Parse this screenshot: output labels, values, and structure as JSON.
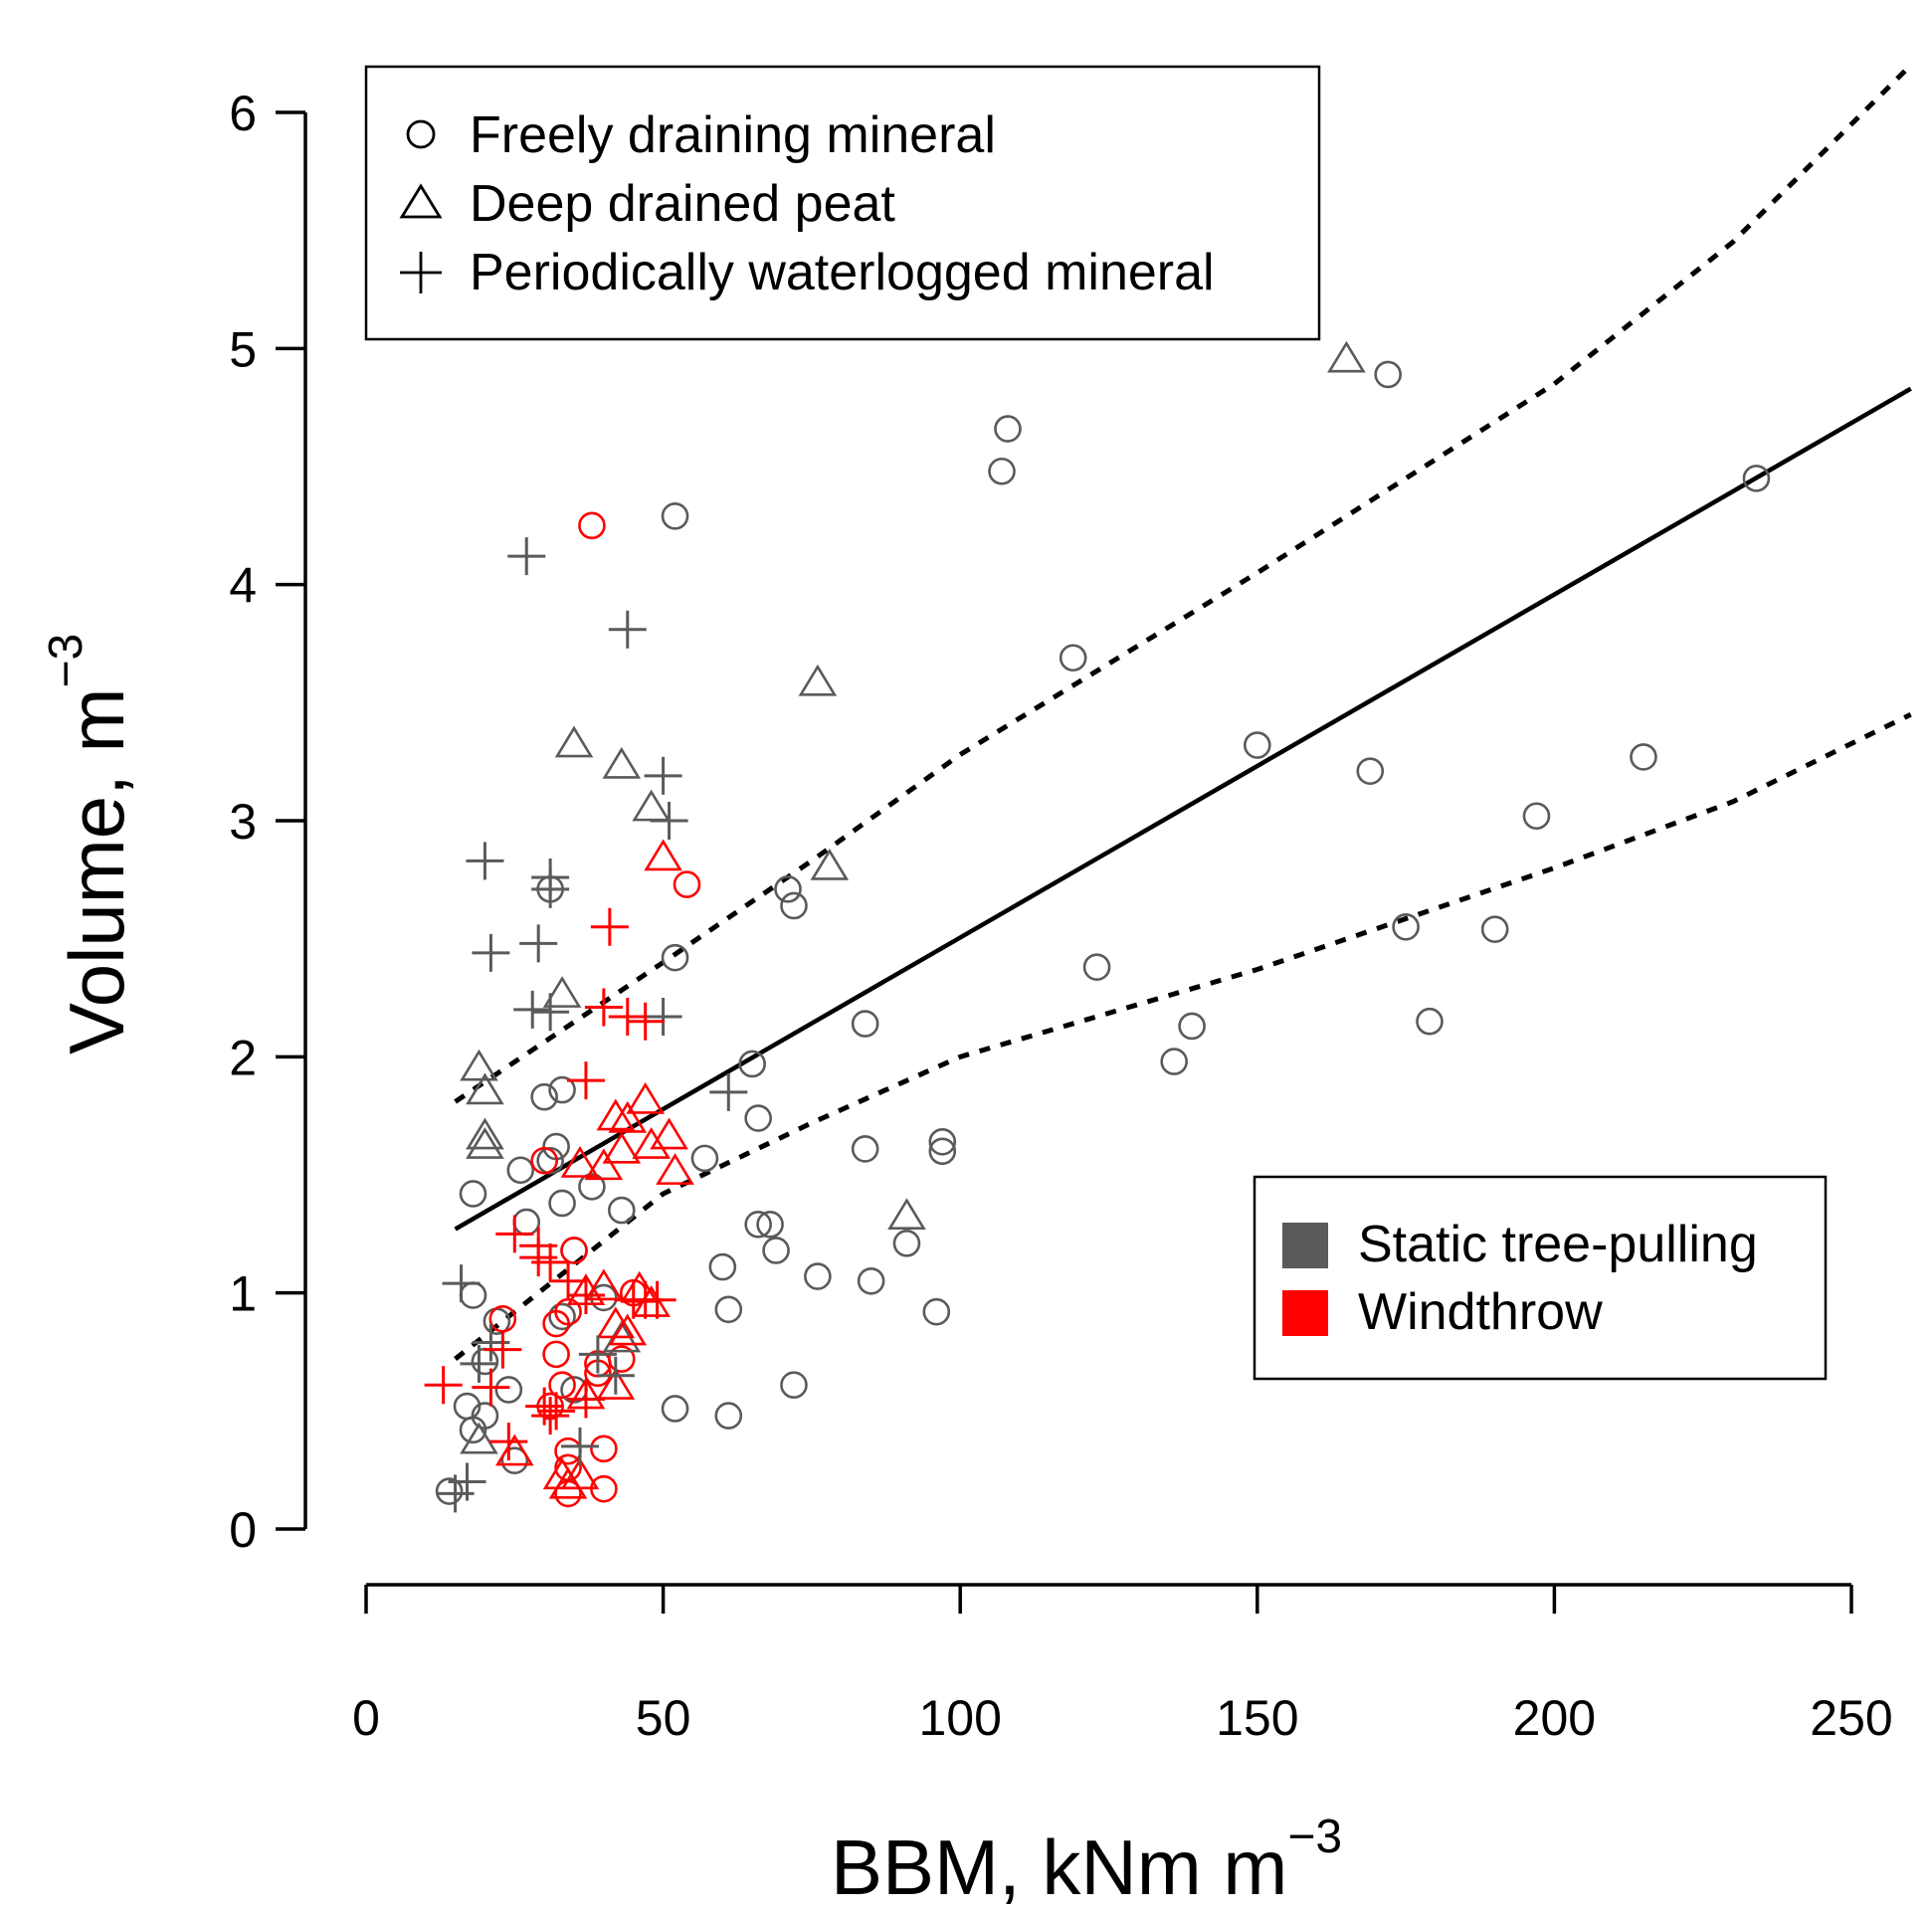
{
  "chart_data": {
    "type": "scatter",
    "xlabel": "BBM, kNm m",
    "xlabel_sup": "−3",
    "ylabel": "Volume, m",
    "ylabel_sup": "−3",
    "xlim": [
      0,
      250
    ],
    "ylim": [
      0,
      6
    ],
    "x_ticks": [
      0,
      50,
      100,
      150,
      200,
      250
    ],
    "x_tick_labels": [
      "0",
      "50",
      "100",
      "150",
      "200",
      "250"
    ],
    "y_ticks": [
      0,
      1,
      2,
      3,
      4,
      5,
      6
    ],
    "y_tick_labels": [
      "0",
      "1",
      "2",
      "3",
      "4",
      "5",
      "6"
    ],
    "grid": false,
    "shape_legend": {
      "position": "top-left",
      "entries": [
        {
          "symbol": "circle",
          "label": "Freely draining mineral"
        },
        {
          "symbol": "triangle",
          "label": "Deep drained peat"
        },
        {
          "symbol": "plus",
          "label": "Periodically waterlogged mineral"
        }
      ]
    },
    "color_legend": {
      "position": "bottom-right",
      "entries": [
        {
          "label": "Static tree-pulling",
          "color": "#5a5a5a"
        },
        {
          "label": "Windthrow",
          "color": "#ff0000"
        }
      ]
    },
    "colors": {
      "static": "#5a5a5a",
      "windthrow": "#ff0000",
      "line": "#000000"
    },
    "fit_line": {
      "x1": 15,
      "y1": 1.27,
      "x2": 260,
      "y2": 4.83
    },
    "confidence_upper": [
      [
        15,
        1.81
      ],
      [
        50,
        2.4
      ],
      [
        75,
        2.83
      ],
      [
        100,
        3.28
      ],
      [
        150,
        4.05
      ],
      [
        200,
        4.85
      ],
      [
        230,
        5.45
      ],
      [
        260,
        6.2
      ]
    ],
    "confidence_lower": [
      [
        15,
        0.72
      ],
      [
        50,
        1.42
      ],
      [
        75,
        1.72
      ],
      [
        100,
        2.0
      ],
      [
        150,
        2.37
      ],
      [
        200,
        2.8
      ],
      [
        230,
        3.08
      ],
      [
        260,
        3.45
      ]
    ],
    "series": [
      {
        "name": "Freely draining mineral / Static tree-pulling",
        "shape": "circle",
        "color": "static",
        "points": [
          [
            52,
            4.29
          ],
          [
            108,
            4.66
          ],
          [
            107,
            4.48
          ],
          [
            172,
            4.89
          ],
          [
            234,
            4.45
          ],
          [
            119,
            3.69
          ],
          [
            150,
            3.32
          ],
          [
            169,
            3.21
          ],
          [
            215,
            3.27
          ],
          [
            197,
            3.02
          ],
          [
            175,
            2.55
          ],
          [
            190,
            2.54
          ],
          [
            179,
            2.15
          ],
          [
            123,
            2.38
          ],
          [
            139,
            2.13
          ],
          [
            136,
            1.98
          ],
          [
            71,
            2.71
          ],
          [
            72,
            2.64
          ],
          [
            52,
            2.42
          ],
          [
            65,
            1.97
          ],
          [
            66,
            1.74
          ],
          [
            84,
            2.14
          ],
          [
            84,
            1.61
          ],
          [
            97,
            1.64
          ],
          [
            97,
            1.6
          ],
          [
            57,
            1.57
          ],
          [
            31,
            2.71
          ],
          [
            30,
            1.83
          ],
          [
            33,
            1.86
          ],
          [
            32,
            1.62
          ],
          [
            26,
            1.52
          ],
          [
            31,
            1.56
          ],
          [
            18,
            1.42
          ],
          [
            33,
            1.38
          ],
          [
            43,
            1.35
          ],
          [
            27,
            1.3
          ],
          [
            38,
            1.45
          ],
          [
            66,
            1.29
          ],
          [
            68,
            1.29
          ],
          [
            69,
            1.18
          ],
          [
            76,
            1.07
          ],
          [
            85,
            1.05
          ],
          [
            91,
            1.21
          ],
          [
            60,
            1.11
          ],
          [
            61,
            0.93
          ],
          [
            96,
            0.92
          ],
          [
            72,
            0.61
          ],
          [
            52,
            0.51
          ],
          [
            61,
            0.48
          ],
          [
            18,
            0.99
          ],
          [
            22,
            0.88
          ],
          [
            20,
            0.71
          ],
          [
            24,
            0.59
          ],
          [
            20,
            0.48
          ],
          [
            17,
            0.52
          ],
          [
            18,
            0.42
          ],
          [
            25,
            0.29
          ],
          [
            14,
            0.16
          ],
          [
            33,
            0.9
          ],
          [
            35,
            1.18
          ],
          [
            35,
            0.59
          ],
          [
            40,
            0.98
          ]
        ]
      },
      {
        "name": "Freely draining mineral / Windthrow",
        "shape": "circle",
        "color": "windthrow",
        "points": [
          [
            38,
            4.25
          ],
          [
            54,
            2.73
          ],
          [
            30,
            1.56
          ],
          [
            23,
            0.89
          ],
          [
            32,
            0.87
          ],
          [
            32,
            0.74
          ],
          [
            35,
            1.18
          ],
          [
            33,
            0.61
          ],
          [
            34,
            0.33
          ],
          [
            34,
            0.26
          ],
          [
            34,
            0.15
          ],
          [
            39,
            0.7
          ],
          [
            39,
            0.66
          ],
          [
            40,
            0.34
          ],
          [
            40,
            0.17
          ],
          [
            45,
            1.0
          ],
          [
            43,
            0.72
          ],
          [
            31,
            0.52
          ],
          [
            34,
            0.92
          ]
        ]
      },
      {
        "name": "Deep drained peat / Static tree-pulling",
        "shape": "triangle",
        "color": "static",
        "points": [
          [
            165,
            4.95
          ],
          [
            76,
            3.58
          ],
          [
            35,
            3.32
          ],
          [
            43,
            3.23
          ],
          [
            48,
            3.05
          ],
          [
            78,
            2.8
          ],
          [
            33,
            2.26
          ],
          [
            19,
            1.95
          ],
          [
            20,
            1.85
          ],
          [
            20,
            1.66
          ],
          [
            20,
            1.62
          ],
          [
            91,
            1.32
          ],
          [
            19,
            0.37
          ],
          [
            43,
            0.8
          ]
        ]
      },
      {
        "name": "Deep drained peat / Windthrow",
        "shape": "triangle",
        "color": "windthrow",
        "points": [
          [
            50,
            2.84
          ],
          [
            47,
            1.81
          ],
          [
            42,
            1.74
          ],
          [
            44,
            1.73
          ],
          [
            43,
            1.6
          ],
          [
            51,
            1.66
          ],
          [
            48,
            1.62
          ],
          [
            52,
            1.51
          ],
          [
            36,
            1.54
          ],
          [
            40,
            1.53
          ],
          [
            37,
            1.0
          ],
          [
            40,
            1.02
          ],
          [
            46,
            1.01
          ],
          [
            48,
            0.95
          ],
          [
            42,
            0.86
          ],
          [
            44,
            0.83
          ],
          [
            37,
            0.56
          ],
          [
            42,
            0.6
          ],
          [
            25,
            0.32
          ],
          [
            33,
            0.22
          ],
          [
            36,
            0.22
          ],
          [
            34,
            0.18
          ]
        ]
      },
      {
        "name": "Periodically waterlogged mineral / Static tree-pulling",
        "shape": "plus",
        "color": "static",
        "points": [
          [
            27,
            4.12
          ],
          [
            44,
            3.81
          ],
          [
            50,
            3.19
          ],
          [
            51,
            3.0
          ],
          [
            20,
            2.83
          ],
          [
            31,
            2.76
          ],
          [
            31,
            2.71
          ],
          [
            29,
            2.48
          ],
          [
            21,
            2.44
          ],
          [
            28,
            2.2
          ],
          [
            31,
            2.19
          ],
          [
            50,
            2.17
          ],
          [
            61,
            1.85
          ],
          [
            16,
            1.04
          ],
          [
            21,
            0.79
          ],
          [
            19,
            0.7
          ],
          [
            39,
            0.74
          ],
          [
            42,
            0.65
          ],
          [
            17,
            0.2
          ],
          [
            15,
            0.15
          ],
          [
            36,
            0.35
          ]
        ]
      },
      {
        "name": "Periodically waterlogged mineral / Windthrow",
        "shape": "plus",
        "color": "windthrow",
        "points": [
          [
            41,
            2.55
          ],
          [
            40,
            2.21
          ],
          [
            44,
            2.17
          ],
          [
            47,
            2.15
          ],
          [
            37,
            1.9
          ],
          [
            25,
            1.25
          ],
          [
            29,
            1.2
          ],
          [
            31,
            1.13
          ],
          [
            29,
            1.15
          ],
          [
            34,
            1.05
          ],
          [
            37,
            0.99
          ],
          [
            23,
            0.76
          ],
          [
            49,
            0.97
          ],
          [
            45,
            0.97
          ],
          [
            47,
            0.97
          ],
          [
            13,
            0.61
          ],
          [
            21,
            0.6
          ],
          [
            30,
            0.52
          ],
          [
            32,
            0.5
          ],
          [
            37,
            0.55
          ],
          [
            24,
            0.37
          ],
          [
            31,
            0.48
          ]
        ]
      }
    ]
  }
}
